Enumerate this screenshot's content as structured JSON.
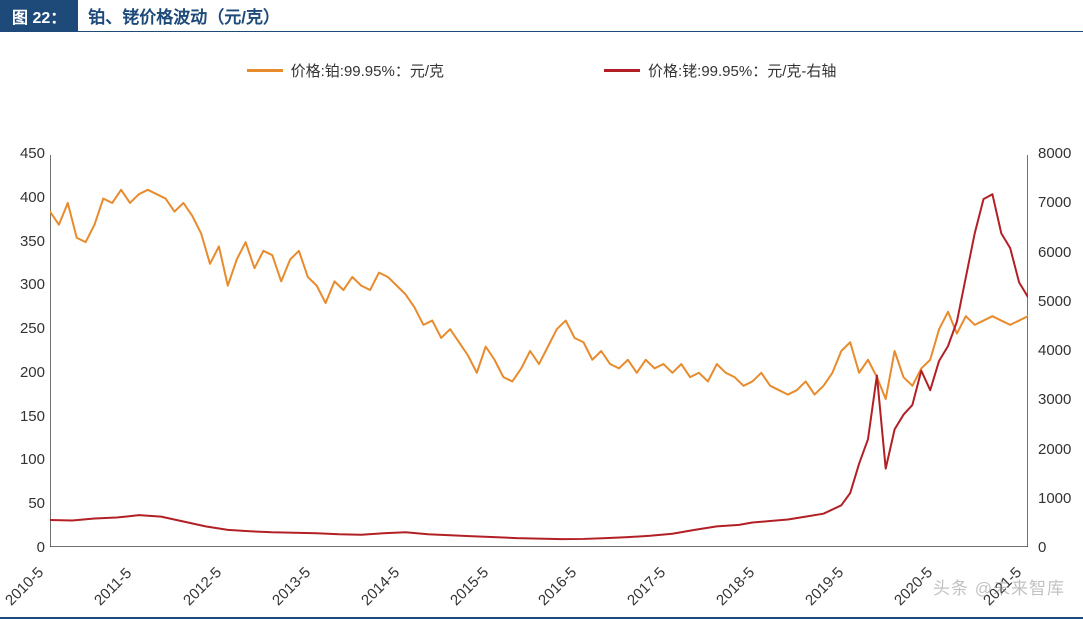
{
  "title": {
    "badge": "图 22：",
    "text": "铂、铑价格波动（元/克）",
    "badge_bg": "#1e4a7a",
    "badge_fg": "#ffffff",
    "text_color": "#1e4a7a",
    "fontsize": 17
  },
  "legend": {
    "items": [
      {
        "label": "价格:铂:99.95%：元/克",
        "color": "#e88b2d"
      },
      {
        "label": "价格:铑:99.95%：元/克-右轴",
        "color": "#b22026"
      }
    ],
    "fontsize": 15
  },
  "chart": {
    "type": "line",
    "background_color": "#ffffff",
    "axis_color": "#444444",
    "tick_fontsize": 15,
    "line_width": 2,
    "x": {
      "labels": [
        "2010-5",
        "2011-5",
        "2012-5",
        "2013-5",
        "2014-5",
        "2015-5",
        "2016-5",
        "2017-5",
        "2018-5",
        "2019-5",
        "2020-5",
        "2021-5"
      ],
      "label_rotation": -45,
      "n_positions": 12
    },
    "y_left": {
      "lim": [
        0,
        450
      ],
      "tick_step": 50,
      "ticks": [
        0,
        50,
        100,
        150,
        200,
        250,
        300,
        350,
        400,
        450
      ]
    },
    "y_right": {
      "lim": [
        0,
        8000
      ],
      "tick_step": 1000,
      "ticks": [
        0,
        1000,
        2000,
        3000,
        4000,
        5000,
        6000,
        7000,
        8000
      ]
    },
    "series": [
      {
        "name": "platinum",
        "axis": "left",
        "color": "#e88b2d",
        "data": [
          [
            0.0,
            385
          ],
          [
            0.02,
            370
          ],
          [
            0.04,
            395
          ],
          [
            0.06,
            355
          ],
          [
            0.08,
            350
          ],
          [
            0.1,
            370
          ],
          [
            0.12,
            400
          ],
          [
            0.14,
            395
          ],
          [
            0.16,
            410
          ],
          [
            0.18,
            395
          ],
          [
            0.2,
            405
          ],
          [
            0.22,
            410
          ],
          [
            0.24,
            405
          ],
          [
            0.26,
            400
          ],
          [
            0.28,
            385
          ],
          [
            0.3,
            395
          ],
          [
            0.32,
            380
          ],
          [
            0.34,
            360
          ],
          [
            0.36,
            325
          ],
          [
            0.38,
            345
          ],
          [
            0.4,
            300
          ],
          [
            0.42,
            330
          ],
          [
            0.44,
            350
          ],
          [
            0.46,
            320
          ],
          [
            0.48,
            340
          ],
          [
            0.5,
            335
          ],
          [
            0.52,
            305
          ],
          [
            0.54,
            330
          ],
          [
            0.56,
            340
          ],
          [
            0.58,
            310
          ],
          [
            0.6,
            300
          ],
          [
            0.62,
            280
          ],
          [
            0.64,
            305
          ],
          [
            0.66,
            295
          ],
          [
            0.68,
            310
          ],
          [
            0.7,
            300
          ],
          [
            0.72,
            295
          ],
          [
            0.74,
            315
          ],
          [
            0.76,
            310
          ],
          [
            0.78,
            300
          ],
          [
            0.8,
            290
          ],
          [
            0.82,
            275
          ],
          [
            0.84,
            255
          ],
          [
            0.86,
            260
          ],
          [
            0.88,
            240
          ],
          [
            0.9,
            250
          ],
          [
            0.92,
            235
          ],
          [
            0.94,
            220
          ],
          [
            0.96,
            200
          ],
          [
            0.98,
            230
          ],
          [
            1.0,
            215
          ],
          [
            1.02,
            195
          ],
          [
            1.04,
            190
          ],
          [
            1.06,
            205
          ],
          [
            1.08,
            225
          ],
          [
            1.1,
            210
          ],
          [
            1.12,
            230
          ],
          [
            1.14,
            250
          ],
          [
            1.16,
            260
          ],
          [
            1.18,
            240
          ],
          [
            1.2,
            235
          ],
          [
            1.22,
            215
          ],
          [
            1.24,
            225
          ],
          [
            1.26,
            210
          ],
          [
            1.28,
            205
          ],
          [
            1.3,
            215
          ],
          [
            1.32,
            200
          ],
          [
            1.34,
            215
          ],
          [
            1.36,
            205
          ],
          [
            1.38,
            210
          ],
          [
            1.4,
            200
          ],
          [
            1.42,
            210
          ],
          [
            1.44,
            195
          ],
          [
            1.46,
            200
          ],
          [
            1.48,
            190
          ],
          [
            1.5,
            210
          ],
          [
            1.52,
            200
          ],
          [
            1.54,
            195
          ],
          [
            1.56,
            185
          ],
          [
            1.58,
            190
          ],
          [
            1.6,
            200
          ],
          [
            1.62,
            185
          ],
          [
            1.64,
            180
          ],
          [
            1.66,
            175
          ],
          [
            1.68,
            180
          ],
          [
            1.7,
            190
          ],
          [
            1.72,
            175
          ],
          [
            1.74,
            185
          ],
          [
            1.76,
            200
          ],
          [
            1.78,
            225
          ],
          [
            1.8,
            235
          ],
          [
            1.82,
            200
          ],
          [
            1.84,
            215
          ],
          [
            1.86,
            195
          ],
          [
            1.88,
            170
          ],
          [
            1.9,
            225
          ],
          [
            1.92,
            195
          ],
          [
            1.94,
            185
          ],
          [
            1.96,
            205
          ],
          [
            1.98,
            215
          ],
          [
            2.0,
            250
          ],
          [
            2.02,
            270
          ],
          [
            2.04,
            245
          ],
          [
            2.06,
            265
          ],
          [
            2.08,
            255
          ],
          [
            2.1,
            260
          ],
          [
            2.12,
            265
          ],
          [
            2.14,
            260
          ],
          [
            2.16,
            255
          ],
          [
            2.18,
            260
          ],
          [
            2.2,
            265
          ]
        ]
      },
      {
        "name": "rhodium",
        "axis": "right",
        "color": "#b22026",
        "data": [
          [
            0.0,
            550
          ],
          [
            0.05,
            540
          ],
          [
            0.1,
            580
          ],
          [
            0.15,
            600
          ],
          [
            0.2,
            650
          ],
          [
            0.25,
            620
          ],
          [
            0.3,
            520
          ],
          [
            0.35,
            420
          ],
          [
            0.4,
            350
          ],
          [
            0.45,
            320
          ],
          [
            0.5,
            300
          ],
          [
            0.55,
            290
          ],
          [
            0.6,
            280
          ],
          [
            0.65,
            260
          ],
          [
            0.7,
            250
          ],
          [
            0.75,
            280
          ],
          [
            0.8,
            300
          ],
          [
            0.85,
            260
          ],
          [
            0.9,
            240
          ],
          [
            0.95,
            220
          ],
          [
            1.0,
            200
          ],
          [
            1.05,
            180
          ],
          [
            1.1,
            170
          ],
          [
            1.15,
            160
          ],
          [
            1.2,
            165
          ],
          [
            1.25,
            180
          ],
          [
            1.3,
            200
          ],
          [
            1.35,
            230
          ],
          [
            1.4,
            270
          ],
          [
            1.45,
            350
          ],
          [
            1.5,
            420
          ],
          [
            1.55,
            450
          ],
          [
            1.58,
            500
          ],
          [
            1.62,
            530
          ],
          [
            1.66,
            560
          ],
          [
            1.7,
            620
          ],
          [
            1.74,
            680
          ],
          [
            1.78,
            850
          ],
          [
            1.8,
            1100
          ],
          [
            1.82,
            1700
          ],
          [
            1.84,
            2200
          ],
          [
            1.86,
            3500
          ],
          [
            1.88,
            1600
          ],
          [
            1.9,
            2400
          ],
          [
            1.92,
            2700
          ],
          [
            1.94,
            2900
          ],
          [
            1.96,
            3600
          ],
          [
            1.98,
            3200
          ],
          [
            2.0,
            3800
          ],
          [
            2.02,
            4100
          ],
          [
            2.04,
            4600
          ],
          [
            2.06,
            5500
          ],
          [
            2.08,
            6400
          ],
          [
            2.1,
            7100
          ],
          [
            2.12,
            7200
          ],
          [
            2.14,
            6400
          ],
          [
            2.16,
            6100
          ],
          [
            2.18,
            5400
          ],
          [
            2.2,
            5100
          ]
        ]
      }
    ]
  },
  "watermark": "头条 @未来智库",
  "border_color": "#1e4a7a"
}
